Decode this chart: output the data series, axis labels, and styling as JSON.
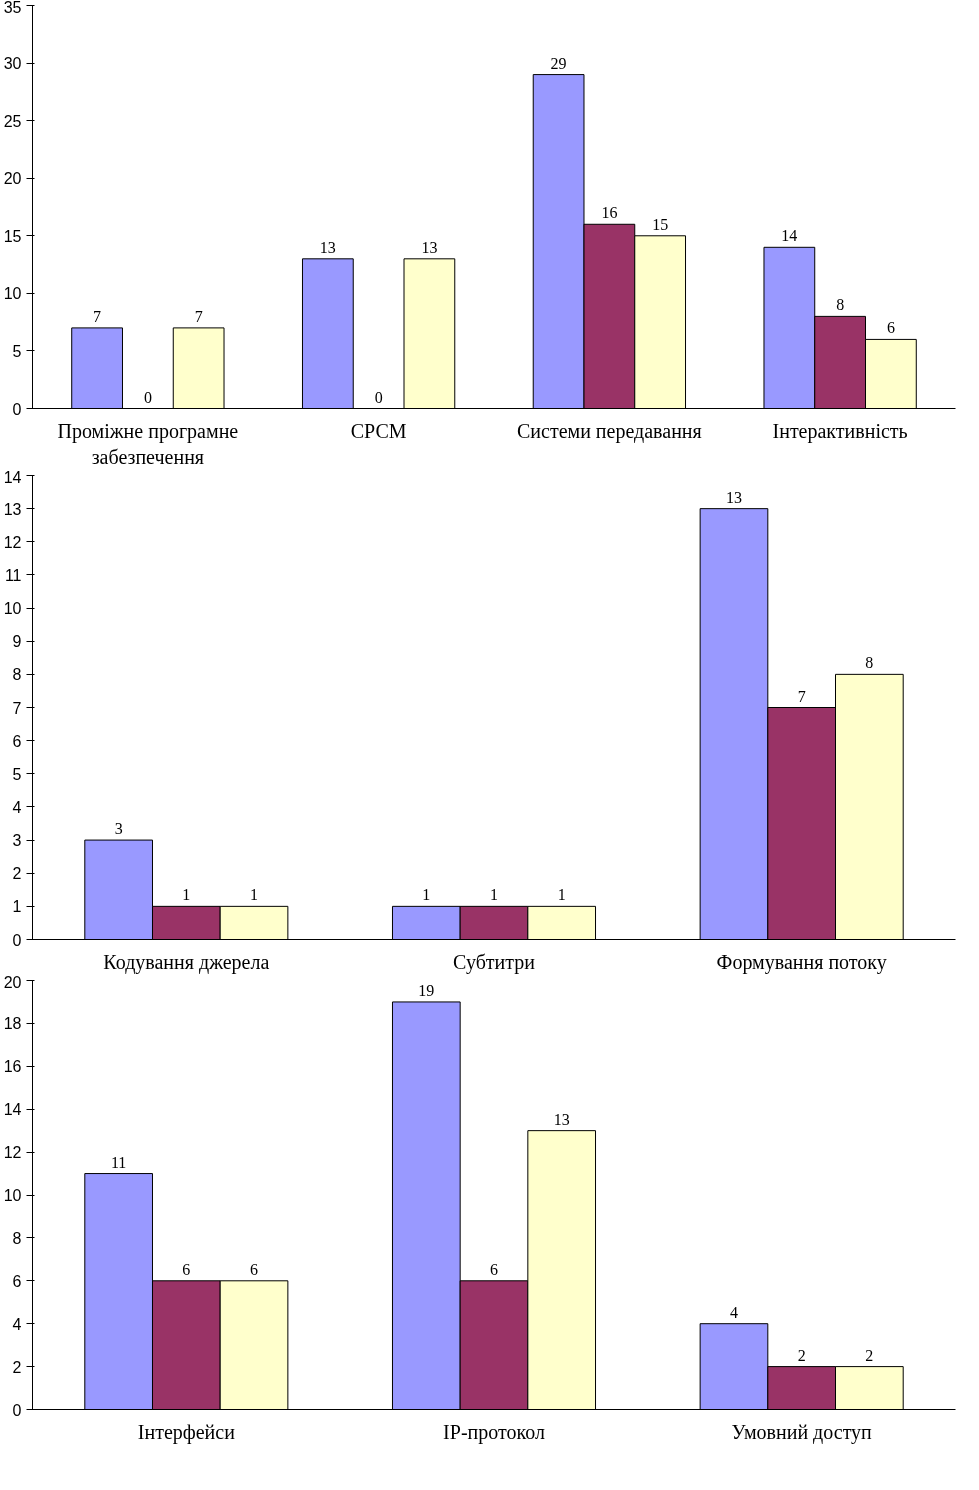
{
  "chart_data": [
    {
      "type": "bar",
      "categories": [
        "Проміжне програмне забезпечення",
        "СРСМ",
        "Системи передавання",
        "Інтерактивність"
      ],
      "ylim": [
        0,
        35
      ],
      "yticks": [
        0,
        5,
        10,
        15,
        20,
        25,
        30,
        35
      ],
      "grid": false,
      "data_labels": true,
      "series": [
        {
          "color": "#9999ff",
          "values": [
            7,
            13,
            29,
            14
          ]
        },
        {
          "color": "#993366",
          "values": [
            0,
            0,
            16,
            8
          ]
        },
        {
          "color": "#ffffcc",
          "values": [
            7,
            13,
            15,
            6
          ]
        }
      ]
    },
    {
      "type": "bar",
      "categories": [
        "Кодування джерела",
        "Субтитри",
        "Формування потоку"
      ],
      "ylim": [
        0,
        14
      ],
      "yticks": [
        0,
        1,
        2,
        3,
        4,
        5,
        6,
        7,
        8,
        9,
        10,
        11,
        12,
        13,
        14
      ],
      "grid": false,
      "data_labels": true,
      "series": [
        {
          "color": "#9999ff",
          "values": [
            3,
            1,
            13
          ]
        },
        {
          "color": "#993366",
          "values": [
            1,
            1,
            7
          ]
        },
        {
          "color": "#ffffcc",
          "values": [
            1,
            1,
            8
          ]
        }
      ]
    },
    {
      "type": "bar",
      "categories": [
        "Інтерфейси",
        "ІР-протокол",
        "Умовний доступ"
      ],
      "ylim": [
        0,
        20
      ],
      "yticks": [
        0,
        2,
        4,
        6,
        8,
        10,
        12,
        14,
        16,
        18,
        20
      ],
      "grid": false,
      "data_labels": true,
      "series": [
        {
          "color": "#9999ff",
          "values": [
            11,
            19,
            4
          ]
        },
        {
          "color": "#993366",
          "values": [
            6,
            6,
            2
          ]
        },
        {
          "color": "#ffffcc",
          "values": [
            6,
            13,
            2
          ]
        }
      ]
    }
  ]
}
